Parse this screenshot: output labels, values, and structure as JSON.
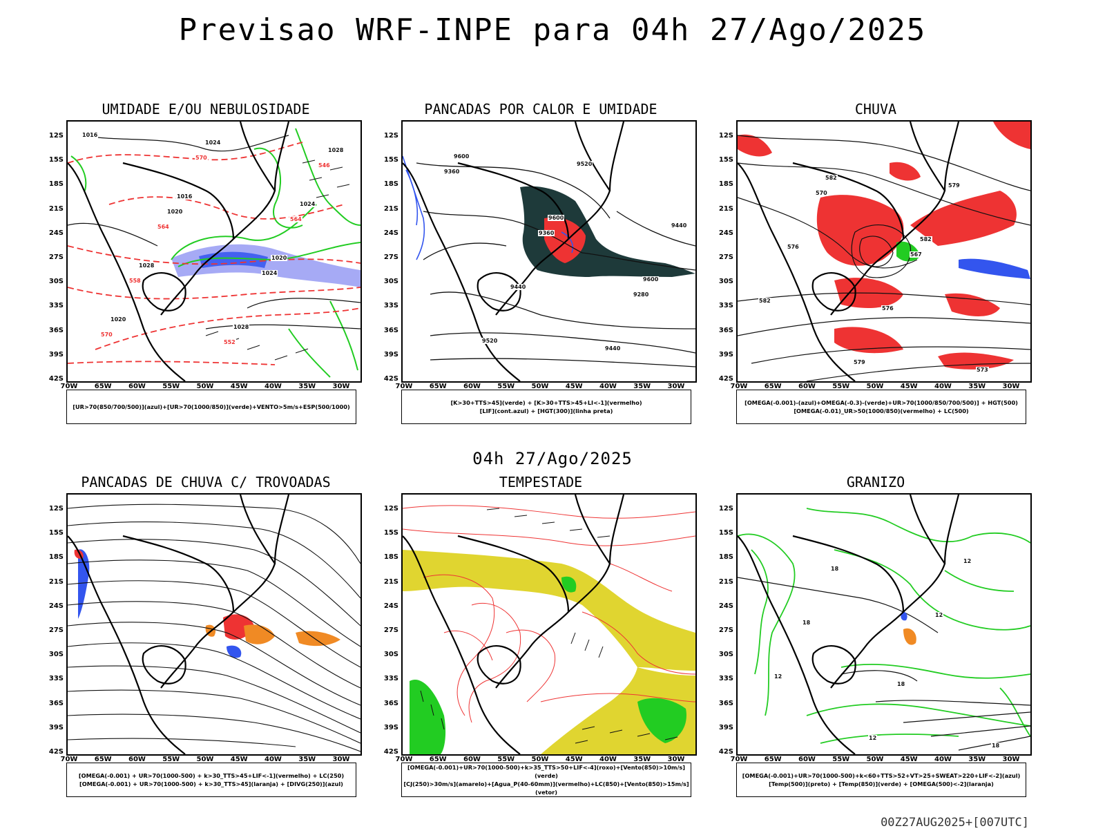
{
  "title": "Previsao WRF-INPE  para 04h 27/Ago/2025",
  "subtitle": "04h 27/Ago/2025",
  "footer": "00Z27AUG2025+[007UTC]",
  "axes": {
    "lat_labels": [
      "12S",
      "15S",
      "18S",
      "21S",
      "24S",
      "27S",
      "30S",
      "33S",
      "36S",
      "39S",
      "42S"
    ],
    "lon_labels": [
      "70W",
      "65W",
      "60W",
      "55W",
      "50W",
      "45W",
      "40W",
      "35W",
      "30W"
    ]
  },
  "colors": {
    "coast": "#000000",
    "contour": "#111111",
    "green": "#22cc22",
    "blue": "#3355ee",
    "lightblue": "#a6aaf5",
    "red": "#ee3333",
    "orange": "#f08a24",
    "yellow": "#e0d530",
    "darkteal": "#1e3a3a",
    "purple": "#8855cc"
  },
  "panels": [
    {
      "id": "umidade",
      "title": "UMIDADE E/OU NEBULOSIDADE",
      "legend": [
        "[UR>70(850/700/500)](azul)+[UR>70(1000/850)](verde)+VENTO>5m/s+ESP(500/1000)"
      ],
      "contour_labels": [
        "1016",
        "1016",
        "1020",
        "1020",
        "1024",
        "1024",
        "1028",
        "1028",
        "1028",
        "1020",
        "1024",
        "570",
        "570",
        "564",
        "558",
        "552",
        "546",
        "564"
      ]
    },
    {
      "id": "pancadas_calor",
      "title": "PANCADAS POR CALOR E UMIDADE",
      "legend": [
        "[K>30+TTS>45](verde) + [K>30+TTS>45+LI<-1](vermelho)",
        "[LIF](cont.azul) + [HGT(300)](linha preta)"
      ],
      "contour_labels": [
        "9600",
        "9600",
        "9600",
        "9520",
        "9520",
        "9440",
        "9440",
        "9440",
        "9360",
        "9360",
        "9280"
      ]
    },
    {
      "id": "chuva",
      "title": "CHUVA",
      "legend": [
        "[OMEGA(-0.001)-(azul)+OMEGA(-0.3)-(verde)+UR>70(1000/850/700/500)] + HGT(500)",
        "[OMEGA(-0.01)_UR>50(1000/850)(vermelho) + LC(500)"
      ],
      "contour_labels": [
        "582",
        "582",
        "582",
        "579",
        "579",
        "576",
        "576",
        "573",
        "570",
        "567"
      ]
    },
    {
      "id": "trovoadas",
      "title": "PANCADAS DE CHUVA C/ TROVOADAS",
      "legend": [
        "[OMEGA(-0.001) + UR>70(1000-500) + k>30_TTS>45+LIF<-1](vermelho) + LC(250)",
        "[OMEGA(-0.001) + UR>70(1000-500) + k>30_TTS>45](laranja) + [DIVG(250)](azul)"
      ],
      "contour_labels": []
    },
    {
      "id": "tempestade",
      "title": "TEMPESTADE",
      "legend": [
        "[OMEGA(-0.001)+UR>70(1000-500)+k>35_TTS>50+LIF<-4](roxo)+[Vento(850)>10m/s](verde)",
        "[CJ(250)>30m/s](amarelo)+[Agua_P(40-60mm)](vermelho)+LC(850)+[Vento(850)>15m/s](vetor)"
      ],
      "contour_labels": []
    },
    {
      "id": "granizo",
      "title": "GRANIZO",
      "legend": [
        "[OMEGA(-0.001)+UR>70(1000-500)+k<60+TTS>52+VT>25+SWEAT>220+LIF<-2](azul)",
        "[Temp(500)](preto) + [Temp(850)](verde) + [OMEGA(500)<-2](laranja)"
      ],
      "contour_labels": [
        "12",
        "12",
        "12",
        "12",
        "18",
        "18",
        "18",
        "18"
      ]
    }
  ]
}
